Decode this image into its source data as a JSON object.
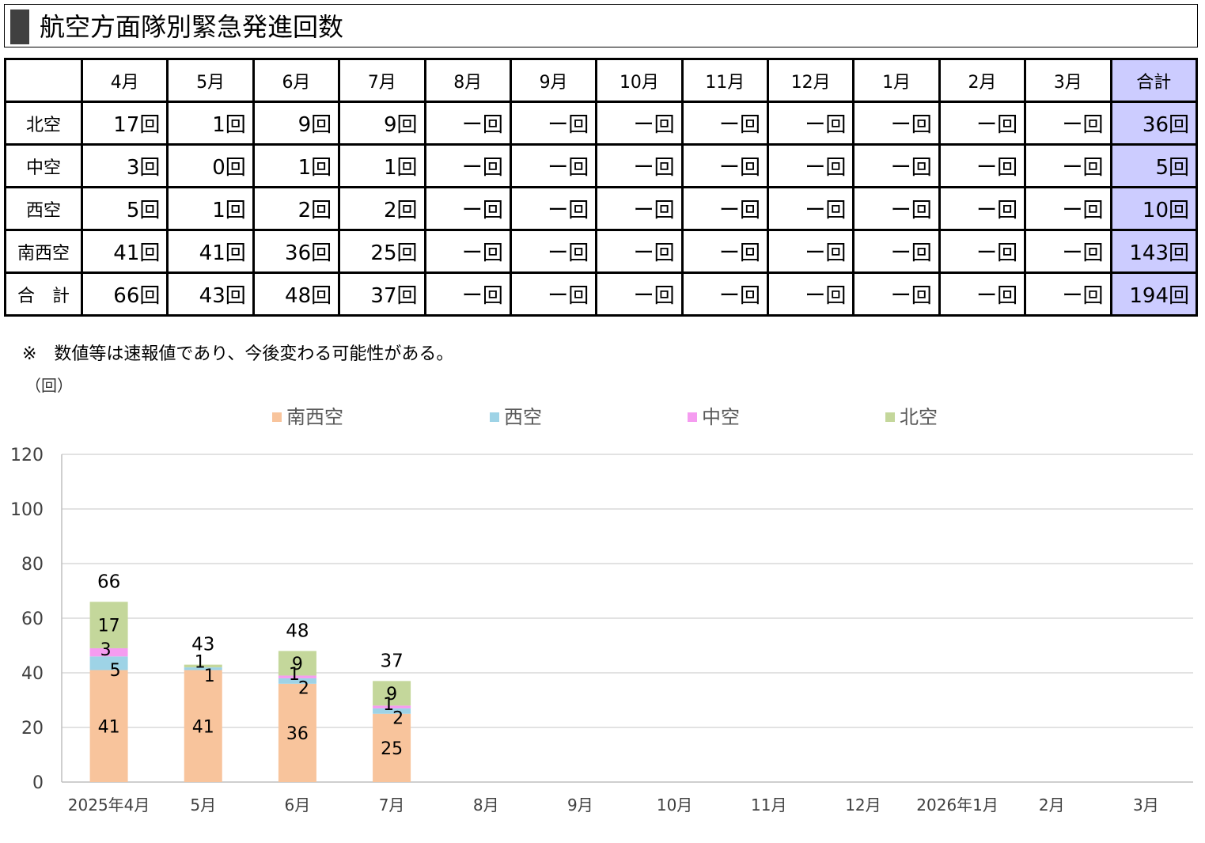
{
  "title": "航空方面隊別緊急発進回数",
  "table": {
    "corner": "",
    "months": [
      "4月",
      "5月",
      "6月",
      "7月",
      "8月",
      "9月",
      "10月",
      "11月",
      "12月",
      "1月",
      "2月",
      "3月"
    ],
    "total_header": "合計",
    "rows": [
      {
        "label": "北空",
        "values": [
          "17回",
          "1回",
          "9回",
          "9回",
          "ー回",
          "ー回",
          "ー回",
          "ー回",
          "ー回",
          "ー回",
          "ー回",
          "ー回"
        ],
        "total": "36回"
      },
      {
        "label": "中空",
        "values": [
          "3回",
          "0回",
          "1回",
          "1回",
          "ー回",
          "ー回",
          "ー回",
          "ー回",
          "ー回",
          "ー回",
          "ー回",
          "ー回"
        ],
        "total": "5回"
      },
      {
        "label": "西空",
        "values": [
          "5回",
          "1回",
          "2回",
          "2回",
          "ー回",
          "ー回",
          "ー回",
          "ー回",
          "ー回",
          "ー回",
          "ー回",
          "ー回"
        ],
        "total": "10回"
      },
      {
        "label": "南西空",
        "values": [
          "41回",
          "41回",
          "36回",
          "25回",
          "ー回",
          "ー回",
          "ー回",
          "ー回",
          "ー回",
          "ー回",
          "ー回",
          "ー回"
        ],
        "total": "143回"
      },
      {
        "label": "合　計",
        "values": [
          "66回",
          "43回",
          "48回",
          "37回",
          "ー回",
          "ー回",
          "ー回",
          "ー回",
          "ー回",
          "ー回",
          "ー回",
          "ー回"
        ],
        "total": "194回"
      }
    ]
  },
  "note": "※　数値等は速報値であり、今後変わる可能性がある。",
  "unit_label": "（回）",
  "chart_data": {
    "type": "bar",
    "stacked": true,
    "categories": [
      "2025年4月",
      "5月",
      "6月",
      "7月",
      "8月",
      "9月",
      "10月",
      "11月",
      "12月",
      "2026年1月",
      "2月",
      "3月"
    ],
    "series": [
      {
        "name": "南西空",
        "color": "#f8c49c",
        "values": [
          41,
          41,
          36,
          25,
          null,
          null,
          null,
          null,
          null,
          null,
          null,
          null
        ]
      },
      {
        "name": "西空",
        "color": "#9ed3e6",
        "values": [
          5,
          1,
          2,
          2,
          null,
          null,
          null,
          null,
          null,
          null,
          null,
          null
        ]
      },
      {
        "name": "中空",
        "color": "#f59cf0",
        "values": [
          3,
          0,
          1,
          1,
          null,
          null,
          null,
          null,
          null,
          null,
          null,
          null
        ]
      },
      {
        "name": "北空",
        "color": "#c4d79b",
        "values": [
          17,
          1,
          9,
          9,
          null,
          null,
          null,
          null,
          null,
          null,
          null,
          null
        ]
      }
    ],
    "totals": [
      66,
      43,
      48,
      37,
      null,
      null,
      null,
      null,
      null,
      null,
      null,
      null
    ],
    "ylim": [
      0,
      120
    ],
    "yticks": [
      0,
      20,
      40,
      60,
      80,
      100,
      120
    ],
    "grid": true,
    "legend": "top"
  }
}
